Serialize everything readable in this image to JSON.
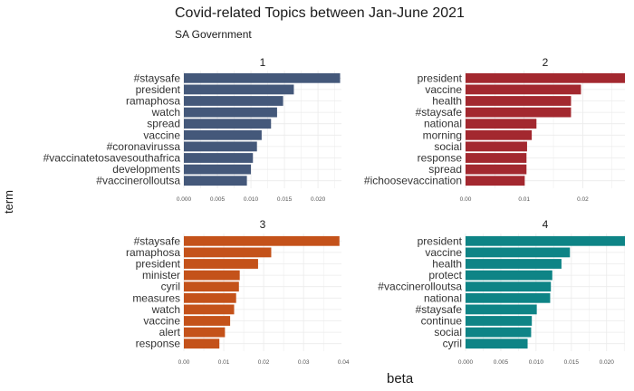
{
  "chart_data": {
    "type": "bar",
    "title": "Covid-related Topics between Jan-June 2021",
    "subtitle": "SA Government",
    "xlabel": "beta",
    "ylabel": "term",
    "panels": [
      {
        "facet": "1",
        "color": "#44587a",
        "xlim": [
          0,
          0.0235
        ],
        "ticks": [
          0.0,
          0.005,
          0.01,
          0.015,
          0.02
        ],
        "tick_labels": [
          "0.000",
          "0.005",
          "0.010",
          "0.015",
          "0.020"
        ],
        "categories": [
          "#staysafe",
          "president",
          "ramaphosa",
          "watch",
          "spread",
          "vaccine",
          "#coronavirussa",
          "#vaccinatetosavesouthafrica",
          "developments",
          "#vaccinerolloutsa"
        ],
        "values": [
          0.0233,
          0.0164,
          0.0148,
          0.0139,
          0.013,
          0.0116,
          0.0109,
          0.0103,
          0.01,
          0.0094
        ]
      },
      {
        "facet": "2",
        "color": "#a3282f",
        "xlim": [
          0,
          0.0272
        ],
        "ticks": [
          0.0,
          0.01,
          0.02
        ],
        "tick_labels": [
          "0.00",
          "0.01",
          "0.02"
        ],
        "categories": [
          "president",
          "vaccine",
          "health",
          "#staysafe",
          "national",
          "morning",
          "social",
          "response",
          "spread",
          "#ichoosevaccination"
        ],
        "values": [
          0.0272,
          0.0197,
          0.018,
          0.018,
          0.0121,
          0.0113,
          0.0105,
          0.0104,
          0.0104,
          0.0101
        ]
      },
      {
        "facet": "3",
        "color": "#c4521a",
        "xlim": [
          0,
          0.0395
        ],
        "ticks": [
          0.0,
          0.01,
          0.02,
          0.03,
          0.04
        ],
        "tick_labels": [
          "0.00",
          "0.01",
          "0.02",
          "0.03",
          "0.04"
        ],
        "categories": [
          "#staysafe",
          "ramaphosa",
          "president",
          "minister",
          "cyril",
          "measures",
          "watch",
          "vaccine",
          "alert",
          "response"
        ],
        "values": [
          0.039,
          0.0219,
          0.0186,
          0.014,
          0.0138,
          0.0131,
          0.0126,
          0.0116,
          0.0103,
          0.0089
        ]
      },
      {
        "facet": "4",
        "color": "#0e8486",
        "xlim": [
          0,
          0.0226
        ],
        "ticks": [
          0.0,
          0.005,
          0.01,
          0.015,
          0.02
        ],
        "tick_labels": [
          "0.000",
          "0.005",
          "0.010",
          "0.015",
          "0.020"
        ],
        "categories": [
          "president",
          "vaccine",
          "health",
          "protect",
          "#vaccinerolloutsa",
          "national",
          "#staysafe",
          "continue",
          "social",
          "cyril"
        ],
        "values": [
          0.0226,
          0.0148,
          0.0136,
          0.0123,
          0.0121,
          0.012,
          0.0101,
          0.0094,
          0.0093,
          0.0088
        ]
      }
    ],
    "grid": true,
    "legend": "none"
  }
}
